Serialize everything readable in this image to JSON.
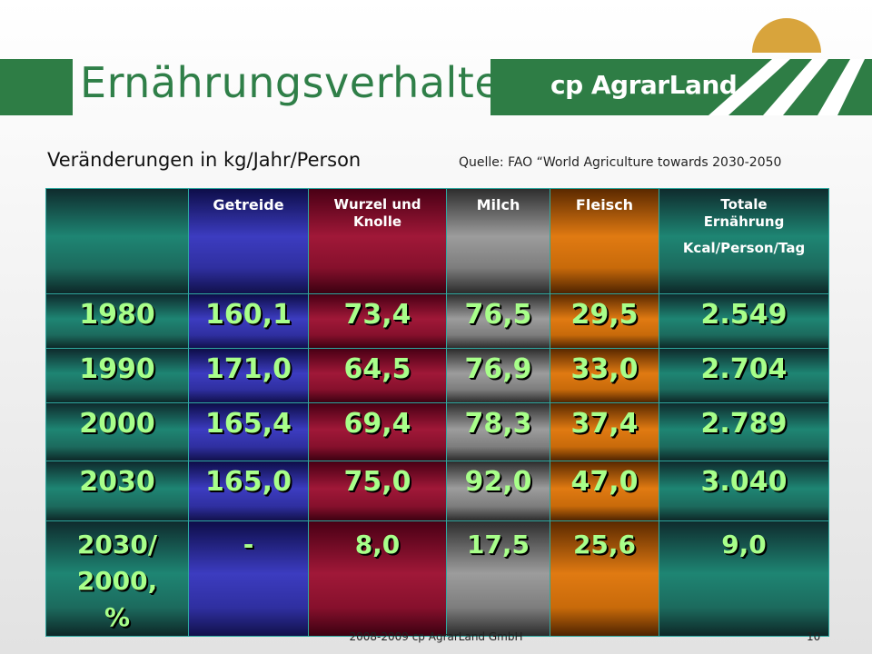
{
  "header": {
    "title": "Ernährungsverhalten",
    "logo_text": "cp AgrarLand"
  },
  "subtitle": "Veränderungen in kg/Jahr/Person",
  "source": "Quelle: FAO “World Agriculture towards 2030-2050",
  "table": {
    "columns": [
      {
        "label": "",
        "color": "#1e8573"
      },
      {
        "label": "Getreide",
        "color": "#3c3cc0"
      },
      {
        "label": "Wurzel und Knolle",
        "color": "#a01838"
      },
      {
        "label": "Milch",
        "color": "#9c9c9c"
      },
      {
        "label": "Fleisch",
        "color": "#e07a12"
      },
      {
        "label": "Totale Ernährung",
        "unit": "Kcal/Person/Tag",
        "color": "#1e8573"
      }
    ],
    "rows": [
      {
        "year": "1980",
        "getreide": "160,1",
        "wurzel": "73,4",
        "milch": "76,5",
        "fleisch": "29,5",
        "totale": "2.549"
      },
      {
        "year": "1990",
        "getreide": "171,0",
        "wurzel": "64,5",
        "milch": "76,9",
        "fleisch": "33,0",
        "totale": "2.704"
      },
      {
        "year": "2000",
        "getreide": "165,4",
        "wurzel": "69,4",
        "milch": "78,3",
        "fleisch": "37,4",
        "totale": "2.789"
      },
      {
        "year": "2030",
        "getreide": "165,0",
        "wurzel": "75,0",
        "milch": "92,0",
        "fleisch": "47,0",
        "totale": "3.040"
      },
      {
        "year": "2030/ 2000, %",
        "getreide": "-",
        "wurzel": "8,0",
        "milch": "17,5",
        "fleisch": "25,6",
        "totale": "9,0"
      }
    ],
    "value_color": "#a8ff8a"
  },
  "footer": {
    "text": "2008-2009  cp AgrarLand GmbH",
    "page_number": "10"
  },
  "colors": {
    "brand_green": "#2e7d45",
    "sun": "#d8a43c"
  }
}
